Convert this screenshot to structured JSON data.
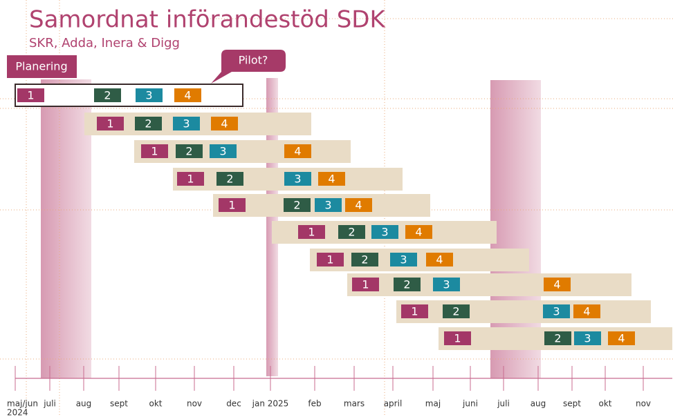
{
  "header": {
    "title": "Samordnat införandestöd SDK",
    "subtitle": "SKR, Adda, Inera & Digg"
  },
  "labels": {
    "planning": "Planering",
    "pilot": "Pilot?"
  },
  "timeline": {
    "year": "2024",
    "months": [
      "maj/jun",
      "juli",
      "aug",
      "sept",
      "okt",
      "nov",
      "dec",
      "jan 2025",
      "feb",
      "mars",
      "april",
      "maj",
      "juni",
      "juli",
      "aug",
      "sept",
      "okt",
      "nov"
    ]
  },
  "rows": [
    {
      "steps": [
        "1",
        "2",
        "3",
        "4"
      ]
    },
    {
      "steps": [
        "1",
        "2",
        "3",
        "4"
      ]
    },
    {
      "steps": [
        "1",
        "2",
        "3",
        "4"
      ]
    },
    {
      "steps": [
        "1",
        "2",
        "3",
        "4"
      ]
    },
    {
      "steps": [
        "1",
        "2",
        "3",
        "4"
      ]
    },
    {
      "steps": [
        "1",
        "2",
        "3",
        "4"
      ]
    },
    {
      "steps": [
        "1",
        "2",
        "3",
        "4"
      ]
    },
    {
      "steps": [
        "1",
        "2",
        "3",
        "4"
      ]
    },
    {
      "steps": [
        "1",
        "2",
        "3",
        "4"
      ]
    },
    {
      "steps": [
        "1",
        "2",
        "3",
        "4"
      ]
    }
  ]
}
